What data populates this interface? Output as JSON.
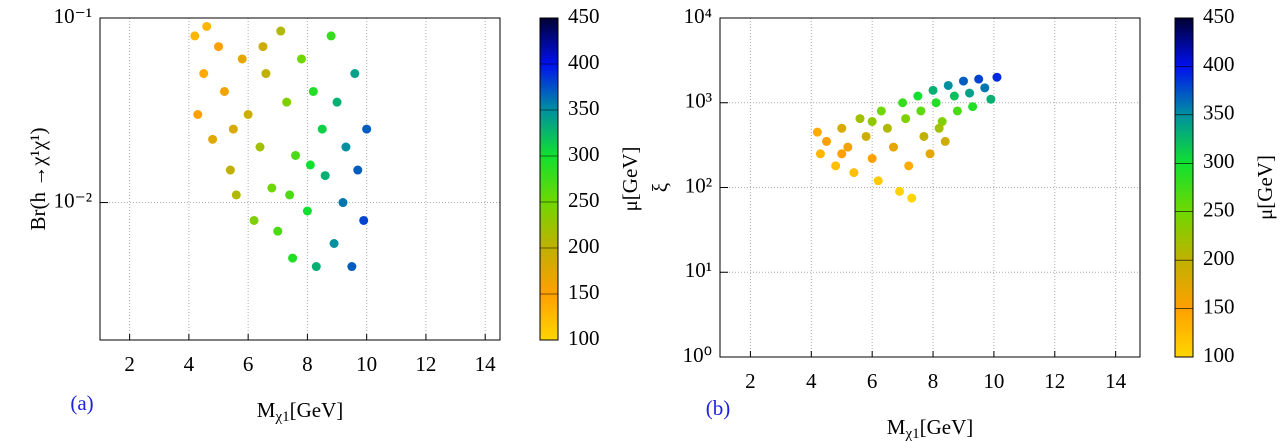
{
  "chart_data": [
    {
      "type": "scatter",
      "panel_label": "(a)",
      "xlabel": {
        "main": "M",
        "sub": "χ1",
        "unit": "[GeV]"
      },
      "ylabel": "Br(h →χ¹χ¹)",
      "clabel": "μ[GeV]",
      "xlim": [
        1,
        14.5
      ],
      "xticks": [
        2,
        4,
        6,
        8,
        10,
        12,
        14
      ],
      "ylim": [
        0.0018,
        0.1
      ],
      "ylog": true,
      "yticks": [
        {
          "value": 0.01,
          "label": "10⁻²"
        },
        {
          "value": 0.1,
          "label": "10⁻¹"
        }
      ],
      "clim": [
        100,
        450
      ],
      "cticks": [
        100,
        150,
        200,
        250,
        300,
        350,
        400,
        450
      ],
      "colormap": [
        "#ffd600",
        "#ffa000",
        "#c0b000",
        "#70d800",
        "#10e030",
        "#0090a0",
        "#0010f0",
        "#000030"
      ],
      "grid": true,
      "x": [
        4.2,
        4.5,
        4.3,
        4.8,
        5.0,
        5.2,
        5.4,
        5.6,
        5.8,
        6.0,
        6.2,
        6.4,
        6.6,
        6.8,
        7.0,
        7.1,
        7.3,
        7.5,
        7.6,
        7.8,
        8.0,
        8.2,
        8.3,
        8.5,
        8.6,
        8.8,
        8.9,
        9.0,
        9.2,
        9.3,
        9.5,
        9.6,
        9.7,
        9.9,
        10.0,
        4.6,
        5.5,
        6.5,
        7.4,
        8.1
      ],
      "y": [
        0.08,
        0.05,
        0.03,
        0.022,
        0.07,
        0.04,
        0.015,
        0.011,
        0.06,
        0.03,
        0.008,
        0.02,
        0.05,
        0.012,
        0.007,
        0.085,
        0.035,
        0.005,
        0.018,
        0.06,
        0.009,
        0.04,
        0.0045,
        0.025,
        0.014,
        0.08,
        0.006,
        0.035,
        0.01,
        0.02,
        0.0045,
        0.05,
        0.015,
        0.008,
        0.025,
        0.09,
        0.025,
        0.07,
        0.011,
        0.016
      ],
      "c": [
        130,
        140,
        150,
        175,
        150,
        160,
        200,
        210,
        170,
        190,
        240,
        220,
        200,
        250,
        270,
        210,
        240,
        290,
        270,
        250,
        300,
        290,
        330,
        310,
        330,
        280,
        350,
        330,
        360,
        350,
        370,
        340,
        370,
        380,
        370,
        130,
        180,
        190,
        270,
        300
      ]
    },
    {
      "type": "scatter",
      "panel_label": "(b)",
      "xlabel": {
        "main": "M",
        "sub": "χ1",
        "unit": "[GeV]"
      },
      "ylabel": "ξ",
      "clabel": "μ[GeV]",
      "xlim": [
        1,
        14.8
      ],
      "xticks": [
        2,
        4,
        6,
        8,
        10,
        12,
        14
      ],
      "ylim": [
        1,
        10000
      ],
      "ylog": true,
      "yticks": [
        {
          "value": 1,
          "label": "10⁰"
        },
        {
          "value": 10,
          "label": "10¹"
        },
        {
          "value": 100,
          "label": "10²"
        },
        {
          "value": 1000,
          "label": "10³"
        },
        {
          "value": 10000,
          "label": "10⁴"
        }
      ],
      "clim": [
        100,
        450
      ],
      "cticks": [
        100,
        150,
        200,
        250,
        300,
        350,
        400,
        450
      ],
      "colormap": [
        "#ffd600",
        "#ffa000",
        "#c0b000",
        "#70d800",
        "#10e030",
        "#0090a0",
        "#0010f0",
        "#000030"
      ],
      "grid": true,
      "x": [
        4.2,
        4.3,
        4.5,
        4.8,
        5.0,
        5.2,
        5.4,
        5.6,
        5.8,
        6.0,
        6.2,
        6.3,
        6.5,
        6.7,
        6.9,
        7.0,
        7.1,
        7.2,
        7.3,
        7.5,
        7.6,
        7.7,
        7.9,
        8.0,
        8.1,
        8.3,
        8.4,
        8.5,
        8.7,
        8.8,
        9.0,
        9.2,
        9.3,
        9.5,
        9.7,
        9.9,
        10.1,
        6.0,
        5.0,
        8.2
      ],
      "y": [
        450,
        250,
        350,
        180,
        500,
        300,
        150,
        650,
        400,
        220,
        120,
        800,
        500,
        300,
        90,
        1000,
        650,
        180,
        75,
        1200,
        800,
        400,
        250,
        1400,
        1000,
        600,
        350,
        1600,
        1200,
        800,
        1800,
        1300,
        900,
        1900,
        1500,
        1100,
        2000,
        600,
        250,
        500
      ],
      "c": [
        140,
        130,
        150,
        120,
        180,
        160,
        120,
        220,
        190,
        150,
        110,
        250,
        210,
        170,
        105,
        280,
        240,
        140,
        100,
        300,
        260,
        200,
        170,
        330,
        290,
        240,
        190,
        350,
        320,
        270,
        370,
        340,
        290,
        380,
        360,
        330,
        390,
        230,
        150,
        220
      ]
    }
  ]
}
